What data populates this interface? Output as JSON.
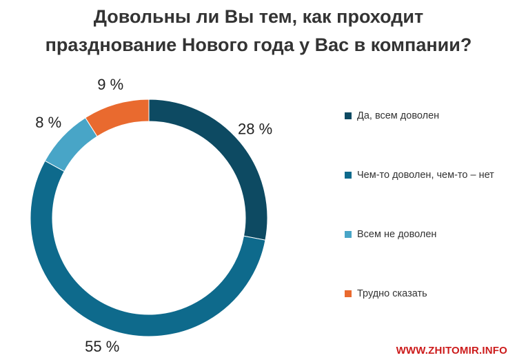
{
  "chart_data": {
    "type": "pie",
    "title": "Довольны ли Вы тем, как проходит празднование Нового года у Вас в компании?",
    "title_lines": [
      "Довольны ли Вы тем, как проходит",
      "празднование Нового года у Вас в компании?"
    ],
    "categories": [
      "Да, всем доволен",
      "Чем-то доволен, чем-то – нет",
      "Всем не доволен",
      "Трудно сказать"
    ],
    "values": [
      28,
      55,
      8,
      9
    ],
    "value_labels": [
      "28 %",
      "55 %",
      "8 %",
      "9 %"
    ],
    "unit": "%",
    "colors": [
      "#0d4a62",
      "#0e6a8c",
      "#48a5c7",
      "#e96a2f"
    ],
    "style": "donut",
    "legend_position": "right"
  },
  "watermark": "WWW.ZHITOMIR.INFO"
}
